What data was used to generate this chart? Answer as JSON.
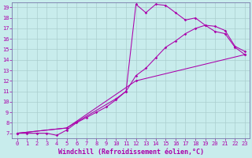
{
  "bg_color": "#c8ecec",
  "grid_color": "#aacece",
  "line_color": "#aa00aa",
  "xlim": [
    -0.5,
    23.5
  ],
  "ylim": [
    6.5,
    19.5
  ],
  "xticks": [
    0,
    1,
    2,
    3,
    4,
    5,
    6,
    7,
    8,
    9,
    10,
    11,
    12,
    13,
    14,
    15,
    16,
    17,
    18,
    19,
    20,
    21,
    22,
    23
  ],
  "yticks": [
    7,
    8,
    9,
    10,
    11,
    12,
    13,
    14,
    15,
    16,
    17,
    18,
    19
  ],
  "xlabel": "Windchill (Refroidissement éolien,°C)",
  "line1_x": [
    0,
    1,
    2,
    3,
    4,
    5,
    6,
    7,
    8,
    9,
    10,
    11,
    12,
    13,
    14,
    15,
    16,
    17,
    18,
    19,
    20,
    21,
    22,
    23
  ],
  "line1_y": [
    7.0,
    7.0,
    7.0,
    7.0,
    6.8,
    7.3,
    8.0,
    8.5,
    9.0,
    9.5,
    10.2,
    11.0,
    19.3,
    18.5,
    19.3,
    19.2,
    18.5,
    17.8,
    18.0,
    17.3,
    16.7,
    16.5,
    15.2,
    14.5
  ],
  "line2_x": [
    0,
    5,
    12,
    23
  ],
  "line2_y": [
    7.0,
    7.5,
    12.0,
    14.5
  ],
  "line3_x": [
    0,
    5,
    10,
    11,
    12,
    13,
    14,
    15,
    16,
    17,
    18,
    19,
    20,
    21,
    22,
    23
  ],
  "line3_y": [
    7.0,
    7.5,
    10.3,
    11.0,
    12.5,
    13.2,
    14.2,
    15.2,
    15.8,
    16.5,
    17.0,
    17.3,
    17.2,
    16.8,
    15.3,
    14.8
  ],
  "figsize": [
    3.2,
    2.0
  ],
  "dpi": 100,
  "tick_fontsize": 5,
  "label_fontsize": 6
}
